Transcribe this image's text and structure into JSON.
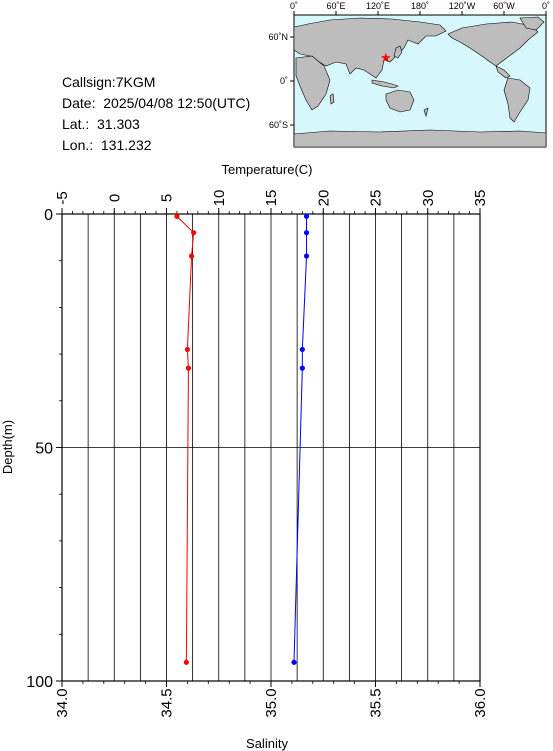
{
  "info": {
    "callsign": "Callsign:7KGM",
    "date": "Date:  2025/04/08 12:50(UTC)",
    "lat": "Lat.:  31.303",
    "lon": "Lon.:  131.232"
  },
  "map": {
    "lon_ticks": [
      "0˚",
      "60˚E",
      "120˚E",
      "180˚",
      "120˚W",
      "60˚W",
      "0˚"
    ],
    "lat_ticks": [
      "60˚N",
      "0˚",
      "60˚S"
    ],
    "marker_lat": 31.303,
    "marker_lon": 131.232,
    "ocean_color": "#d6f7fb",
    "land_color": "#bdbdbd",
    "marker_color": "#ff0000"
  },
  "chart_data": {
    "type": "line",
    "title": "",
    "ylabel": "Depth(m)",
    "ylim": [
      0,
      100
    ],
    "y_inverted": true,
    "y_ticks": [
      0,
      50,
      100
    ],
    "x_top": {
      "label": "Temperature(C)",
      "lim": [
        -5,
        35
      ],
      "ticks": [
        -5,
        0,
        5,
        10,
        15,
        20,
        25,
        30,
        35
      ]
    },
    "x_bottom": {
      "label": "Salinity",
      "lim": [
        34.0,
        36.0
      ],
      "ticks": [
        "34.0",
        "34.5",
        "35.0",
        "35.5",
        "36.0"
      ]
    },
    "grid": true,
    "series": [
      {
        "quantity": "temperature",
        "axis": "top",
        "color": "#ff0000",
        "depth": [
          0.5,
          4,
          9,
          29,
          33,
          96
        ],
        "values": [
          6.0,
          7.6,
          7.4,
          7.0,
          7.1,
          6.9
        ]
      },
      {
        "quantity": "salinity",
        "axis": "bottom",
        "color": "#0000ff",
        "depth": [
          0.5,
          4,
          9,
          29,
          33,
          96
        ],
        "values": [
          35.17,
          35.17,
          35.17,
          35.15,
          35.15,
          35.11
        ]
      }
    ]
  }
}
